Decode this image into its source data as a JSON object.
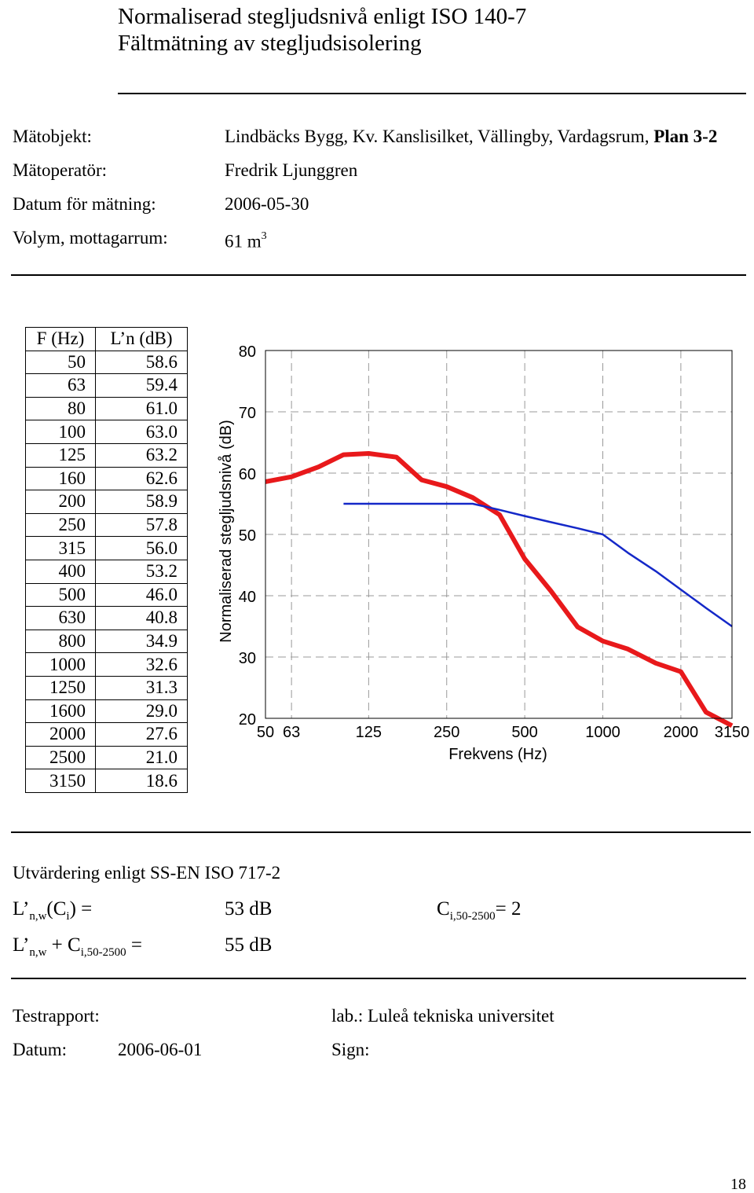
{
  "header": {
    "title_line1": "Normaliserad stegljudsnivå enligt ISO 140-7",
    "title_line2": "Fältmätning av stegljudsisolering"
  },
  "meta": {
    "object_label": "Mätobjekt:",
    "object_value_prefix": "Lindbäcks Bygg, Kv. Kanslisilket, Vällingby, Vardagsrum,",
    "object_value_bold": "Plan 3-2",
    "operator_label": "Mätoperatör:",
    "operator_value": "Fredrik Ljunggren",
    "date_label": "Datum för mätning:",
    "date_value": "2006-05-30",
    "volume_label": "Volym, mottagarrum:",
    "volume_value": "61 m",
    "volume_exp": "3"
  },
  "table": {
    "col_f": "F (Hz)",
    "col_l": "L’n (dB)",
    "rows": [
      {
        "f": "50",
        "l": "58.6"
      },
      {
        "f": "63",
        "l": "59.4"
      },
      {
        "f": "80",
        "l": "61.0"
      },
      {
        "f": "100",
        "l": "63.0"
      },
      {
        "f": "125",
        "l": "63.2"
      },
      {
        "f": "160",
        "l": "62.6"
      },
      {
        "f": "200",
        "l": "58.9"
      },
      {
        "f": "250",
        "l": "57.8"
      },
      {
        "f": "315",
        "l": "56.0"
      },
      {
        "f": "400",
        "l": "53.2"
      },
      {
        "f": "500",
        "l": "46.0"
      },
      {
        "f": "630",
        "l": "40.8"
      },
      {
        "f": "800",
        "l": "34.9"
      },
      {
        "f": "1000",
        "l": "32.6"
      },
      {
        "f": "1250",
        "l": "31.3"
      },
      {
        "f": "1600",
        "l": "29.0"
      },
      {
        "f": "2000",
        "l": "27.6"
      },
      {
        "f": "2500",
        "l": "21.0"
      },
      {
        "f": "3150",
        "l": "18.6"
      }
    ]
  },
  "chart_data": {
    "type": "line",
    "xlabel": "Frekvens (Hz)",
    "ylabel": "Normaliserad stegljudsnivå (dB)",
    "x_scale": "log",
    "ylim": [
      20,
      80
    ],
    "yticks": [
      20,
      30,
      40,
      50,
      60,
      70,
      80
    ],
    "xticks": [
      50,
      63,
      125,
      250,
      500,
      1000,
      2000,
      3150
    ],
    "grid": true,
    "series": [
      {
        "color": "#e8191b",
        "x": [
          50,
          63,
          80,
          100,
          125,
          160,
          200,
          250,
          315,
          400,
          500,
          630,
          800,
          1000,
          1250,
          1600,
          2000,
          2500,
          3150
        ],
        "y": [
          58.6,
          59.4,
          61.0,
          63.0,
          63.2,
          62.6,
          58.9,
          57.8,
          56.0,
          53.2,
          46.0,
          40.8,
          34.9,
          32.6,
          31.3,
          29.0,
          27.6,
          21.0,
          18.6
        ]
      },
      {
        "color": "#1428c8",
        "x": [
          100,
          125,
          160,
          200,
          250,
          315,
          400,
          500,
          630,
          800,
          1000,
          1250,
          1600,
          2000,
          2500,
          3150
        ],
        "y": [
          55,
          55,
          55,
          55,
          55,
          55,
          54,
          53,
          52,
          51,
          50,
          47,
          44,
          41,
          38,
          35
        ]
      }
    ]
  },
  "evaluation": {
    "heading": "Utvärdering enligt SS-EN ISO 717-2",
    "lnw_label_main": "L’",
    "lnw_label_sub": "n,w",
    "ci_main": "(C",
    "ci_sub": "i",
    "ci_close": ") =",
    "lnw_value": "53 dB",
    "c_range_label": "C",
    "c_range_sub": "i,50-2500",
    "c_range_value": "= 2",
    "sum_l": "L’",
    "sum_l_sub": "n,w",
    "sum_plus": " + C",
    "sum_c_sub": "i,50-2500",
    "sum_eq": " =",
    "sum_value": "55 dB"
  },
  "footer": {
    "report_label": "Testrapport:",
    "lab_label": "lab.: Luleå tekniska universitet",
    "date_label": "Datum:",
    "date_value": "2006-06-01",
    "sign_label": "Sign:",
    "page_number": "18"
  }
}
